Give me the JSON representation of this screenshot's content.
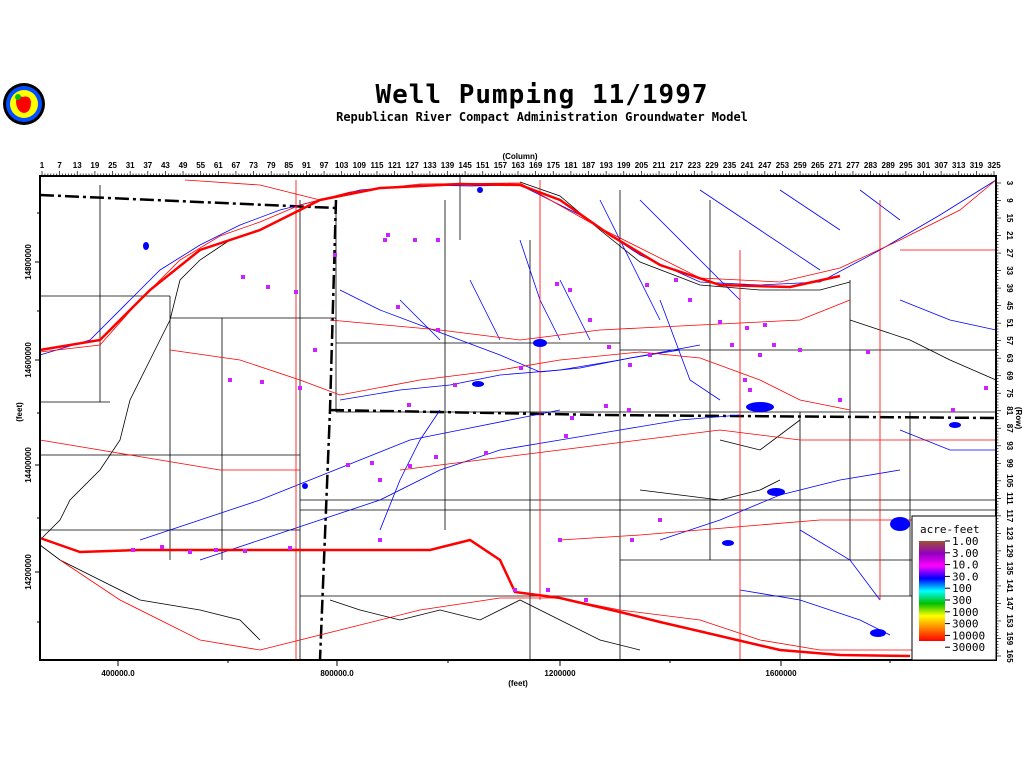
{
  "title": "Well Pumping 11/1997",
  "subtitle": "Republican River Compact Administration Groundwater Model",
  "logo": {
    "icon": "apple-seal-logo",
    "colors": [
      "#0050ff",
      "#ffff00",
      "#ff0000",
      "#00c000"
    ]
  },
  "top_axis": {
    "label": "(Column)",
    "ticks": [
      "1",
      "7",
      "13",
      "19",
      "25",
      "31",
      "37",
      "43",
      "49",
      "55",
      "61",
      "67",
      "73",
      "79",
      "85",
      "91",
      "97",
      "103",
      "109",
      "115",
      "121",
      "127",
      "133",
      "139",
      "145",
      "151",
      "157",
      "163",
      "169",
      "175",
      "181",
      "187",
      "193",
      "199",
      "205",
      "211",
      "217",
      "223",
      "229",
      "235",
      "241",
      "247",
      "253",
      "259",
      "265",
      "271",
      "277",
      "283",
      "289",
      "295",
      "301",
      "307",
      "313",
      "319",
      "325"
    ]
  },
  "right_axis": {
    "label": "(Row)",
    "ticks": [
      "3",
      "9",
      "15",
      "21",
      "27",
      "33",
      "39",
      "45",
      "51",
      "57",
      "63",
      "69",
      "75",
      "81",
      "87",
      "93",
      "99",
      "105",
      "111",
      "117",
      "123",
      "129",
      "135",
      "141",
      "147",
      "153",
      "159",
      "165"
    ]
  },
  "left_axis": {
    "label": "(feet)",
    "ticks": [
      "14800000",
      "14600000",
      "14400000",
      "14200000"
    ]
  },
  "bottom_axis": {
    "label": "(feet)",
    "ticks": [
      "400000.0",
      "800000.0",
      "1200000",
      "1600000"
    ]
  },
  "legend": {
    "title": "acre-feet",
    "labels": [
      "1.00",
      "3.00",
      "10.0",
      "30.0",
      "100",
      "300",
      "1000",
      "3000",
      "10000",
      "30000"
    ],
    "colors": [
      "#a05030",
      "#9000c0",
      "#ff00ff",
      "#0000ff",
      "#00ffff",
      "#00c000",
      "#ffff00",
      "#ff8000",
      "#ff0000"
    ]
  },
  "feature_colors": {
    "streams": "#0000ff",
    "roads": "#ff0000",
    "boundaries": "#000000",
    "wells": "#cc22ff"
  }
}
